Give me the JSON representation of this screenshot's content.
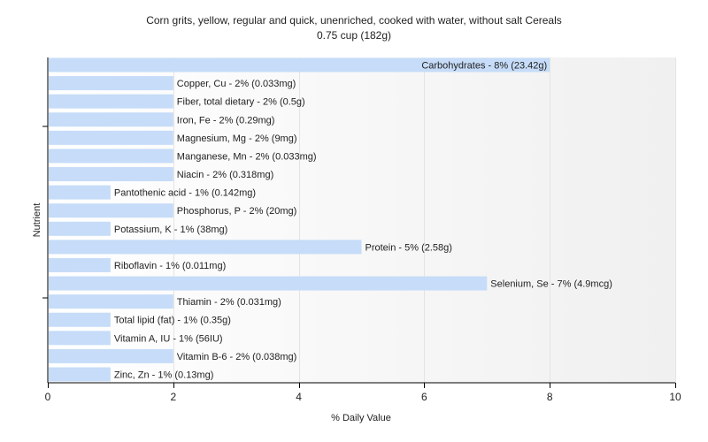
{
  "chart_data": {
    "type": "bar",
    "orientation": "horizontal",
    "title": "Corn grits, yellow, regular and quick, unenriched, cooked with water, without salt Cereals",
    "subtitle": "0.75 cup (182g)",
    "xlabel": "% Daily Value",
    "ylabel": "Nutrient",
    "xlim": [
      0,
      10
    ],
    "xticks": [
      0,
      2,
      4,
      6,
      8,
      10
    ],
    "grid": true,
    "colors": {
      "bar": "#c6dcf8",
      "grid": "#e4e4e4",
      "axis": "#000000"
    },
    "categories": [
      "Carbohydrates",
      "Copper, Cu",
      "Fiber, total dietary",
      "Iron, Fe",
      "Magnesium, Mg",
      "Manganese, Mn",
      "Niacin",
      "Pantothenic acid",
      "Phosphorus, P",
      "Potassium, K",
      "Protein",
      "Riboflavin",
      "Selenium, Se",
      "Thiamin",
      "Total lipid (fat)",
      "Vitamin A, IU",
      "Vitamin B-6",
      "Zinc, Zn"
    ],
    "values": [
      8,
      2,
      2,
      2,
      2,
      2,
      2,
      1,
      2,
      1,
      5,
      1,
      7,
      2,
      1,
      1,
      2,
      1
    ],
    "labels": [
      "Carbohydrates - 8% (23.42g)",
      "Copper, Cu - 2% (0.033mg)",
      "Fiber, total dietary - 2% (0.5g)",
      "Iron, Fe - 2% (0.29mg)",
      "Magnesium, Mg - 2% (9mg)",
      "Manganese, Mn - 2% (0.033mg)",
      "Niacin - 2% (0.318mg)",
      "Pantothenic acid - 1% (0.142mg)",
      "Phosphorus, P - 2% (20mg)",
      "Potassium, K - 1% (38mg)",
      "Protein - 5% (2.58g)",
      "Riboflavin - 1% (0.011mg)",
      "Selenium, Se - 7% (4.9mcg)",
      "Thiamin - 2% (0.031mg)",
      "Total lipid (fat) - 1% (0.35g)",
      "Vitamin A, IU - 1% (56IU)",
      "Vitamin B-6 - 2% (0.038mg)",
      "Zinc, Zn - 1% (0.13mg)"
    ]
  }
}
